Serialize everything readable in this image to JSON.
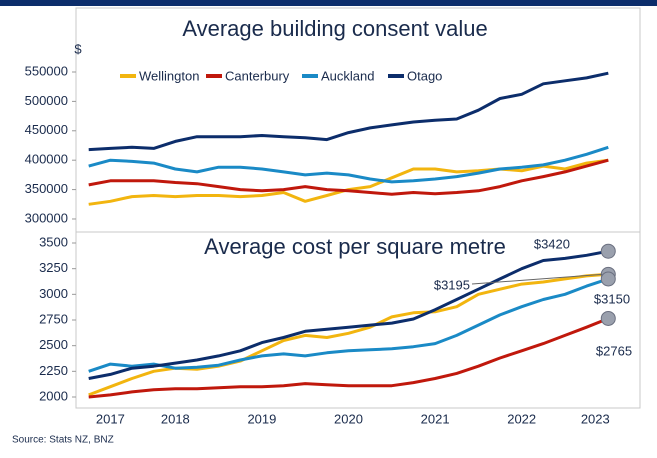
{
  "chart_data": [
    {
      "type": "line",
      "title": "Average building consent value",
      "y_label": "$",
      "x": [
        2017.5,
        2017.75,
        2018,
        2018.25,
        2018.5,
        2018.75,
        2019,
        2019.25,
        2019.5,
        2019.75,
        2020,
        2020.25,
        2020.5,
        2020.75,
        2021,
        2021.25,
        2021.5,
        2021.75,
        2022,
        2022.25,
        2022.5,
        2022.75,
        2023,
        2023.25,
        2023.5
      ],
      "xlim": [
        2017.45,
        2023.7
      ],
      "ylim": [
        285000,
        600000
      ],
      "yticks": [
        300000,
        350000,
        400000,
        450000,
        500000,
        550000
      ],
      "legend": "top-left",
      "series": [
        {
          "name": "Wellington",
          "color": "#f2b50f",
          "values": [
            325000,
            330000,
            338000,
            340000,
            338000,
            340000,
            340000,
            338000,
            340000,
            345000,
            330000,
            340000,
            350000,
            355000,
            370000,
            385000,
            385000,
            380000,
            382000,
            385000,
            382000,
            390000,
            385000,
            395000,
            400000
          ]
        },
        {
          "name": "Canterbury",
          "color": "#c0180c",
          "values": [
            358000,
            365000,
            365000,
            365000,
            362000,
            360000,
            355000,
            350000,
            348000,
            350000,
            355000,
            350000,
            348000,
            345000,
            342000,
            345000,
            343000,
            345000,
            348000,
            355000,
            365000,
            372000,
            380000,
            390000,
            400000
          ]
        },
        {
          "name": "Auckland",
          "color": "#1a8ac6",
          "values": [
            390000,
            400000,
            398000,
            395000,
            385000,
            380000,
            388000,
            388000,
            385000,
            380000,
            375000,
            378000,
            375000,
            368000,
            363000,
            365000,
            368000,
            372000,
            378000,
            385000,
            388000,
            392000,
            400000,
            410000,
            422000
          ]
        },
        {
          "name": "Otago",
          "color": "#0c2d6b",
          "values": [
            418000,
            420000,
            422000,
            420000,
            432000,
            440000,
            440000,
            440000,
            442000,
            440000,
            438000,
            435000,
            447000,
            455000,
            460000,
            465000,
            468000,
            470000,
            485000,
            505000,
            512000,
            530000,
            535000,
            540000,
            548000
          ]
        }
      ]
    },
    {
      "type": "line",
      "title": "Average cost per square metre",
      "x": [
        2017.5,
        2017.75,
        2018,
        2018.25,
        2018.5,
        2018.75,
        2019,
        2019.25,
        2019.5,
        2019.75,
        2020,
        2020.25,
        2020.5,
        2020.75,
        2021,
        2021.25,
        2021.5,
        2021.75,
        2022,
        2022.25,
        2022.5,
        2022.75,
        2023,
        2023.25,
        2023.5
      ],
      "xlim": [
        2017.45,
        2023.7
      ],
      "xticks": [
        {
          "value": 2017.75,
          "label": "2017"
        },
        {
          "value": 2018.5,
          "label": "2018"
        },
        {
          "value": 2019.5,
          "label": "2019"
        },
        {
          "value": 2020.5,
          "label": "2020"
        },
        {
          "value": 2021.5,
          "label": "2021"
        },
        {
          "value": 2022.5,
          "label": "2022"
        },
        {
          "value": 2023.35,
          "label": "2023"
        }
      ],
      "ylim": [
        1920,
        3580
      ],
      "yticks": [
        2000,
        2250,
        2500,
        2750,
        3000,
        3250,
        3500
      ],
      "series": [
        {
          "color": "#f2b50f",
          "values": [
            2020,
            2100,
            2180,
            2250,
            2280,
            2270,
            2300,
            2350,
            2450,
            2550,
            2600,
            2580,
            2620,
            2680,
            2780,
            2820,
            2830,
            2880,
            3000,
            3050,
            3100,
            3120,
            3150,
            3180,
            3195
          ]
        },
        {
          "color": "#c0180c",
          "values": [
            2000,
            2020,
            2050,
            2070,
            2080,
            2080,
            2090,
            2100,
            2100,
            2110,
            2130,
            2120,
            2110,
            2110,
            2110,
            2140,
            2180,
            2230,
            2300,
            2380,
            2450,
            2520,
            2600,
            2680,
            2765
          ]
        },
        {
          "color": "#1a8ac6",
          "values": [
            2250,
            2320,
            2300,
            2320,
            2280,
            2290,
            2310,
            2360,
            2400,
            2420,
            2400,
            2430,
            2450,
            2460,
            2470,
            2490,
            2520,
            2600,
            2700,
            2800,
            2880,
            2950,
            3000,
            3080,
            3150
          ]
        },
        {
          "color": "#0c2d6b",
          "values": [
            2180,
            2220,
            2280,
            2300,
            2330,
            2360,
            2400,
            2450,
            2530,
            2580,
            2640,
            2660,
            2680,
            2700,
            2720,
            2760,
            2850,
            2950,
            3050,
            3150,
            3250,
            3330,
            3350,
            3380,
            3420
          ]
        }
      ],
      "annotations": [
        "$3420",
        "$3195",
        "$3150",
        "$2765"
      ]
    }
  ],
  "source": "Source: Stats NZ, BNZ"
}
